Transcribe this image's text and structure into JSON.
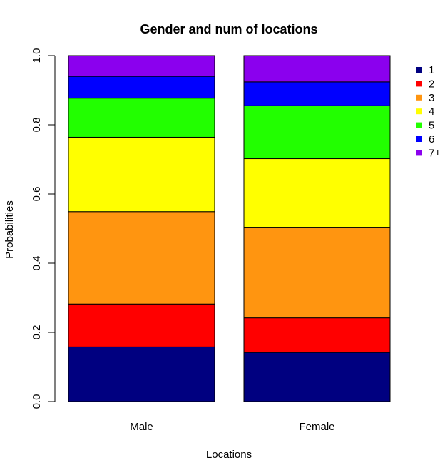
{
  "chart_data": {
    "type": "bar",
    "stacked": true,
    "title": "Gender and num of locations",
    "xlabel": "Locations",
    "ylabel": "Probabilities",
    "categories": [
      "Male",
      "Female"
    ],
    "ylim": [
      0,
      1
    ],
    "yticks": [
      "0.0",
      "0.2",
      "0.4",
      "0.6",
      "0.8",
      "1.0"
    ],
    "ytick_values": [
      0,
      0.2,
      0.4,
      0.6,
      0.8,
      1.0
    ],
    "legend_position": "top-right",
    "grid": false,
    "series": [
      {
        "name": "1",
        "color": "#000080",
        "values": [
          0.158,
          0.142
        ]
      },
      {
        "name": "2",
        "color": "#ff0000",
        "values": [
          0.124,
          0.1
        ]
      },
      {
        "name": "3",
        "color": "#ff9510",
        "values": [
          0.267,
          0.262
        ]
      },
      {
        "name": "4",
        "color": "#ffff00",
        "values": [
          0.215,
          0.198
        ]
      },
      {
        "name": "5",
        "color": "#22ff00",
        "values": [
          0.113,
          0.153
        ]
      },
      {
        "name": "6",
        "color": "#0000ff",
        "values": [
          0.063,
          0.069
        ]
      },
      {
        "name": "7+",
        "color": "#8b00ee",
        "values": [
          0.06,
          0.076
        ]
      }
    ]
  }
}
